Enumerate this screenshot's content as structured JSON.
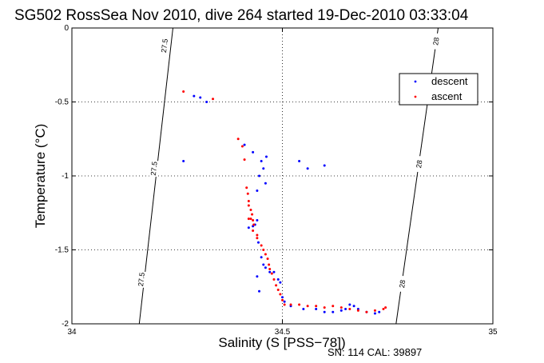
{
  "figure": {
    "title": "SG502 RossSea Nov 2010, dive 264 started 19-Dec-2010 03:33:04",
    "footer": "SN: 114  CAL: 39897"
  },
  "chart_data": {
    "type": "scatter",
    "title": "SG502 RossSea Nov 2010, dive 264 started 19-Dec-2010 03:33:04",
    "xlabel": "Salinity (S [PSS−78])",
    "ylabel": "Temperature (°C)",
    "xlim": [
      34,
      35
    ],
    "ylim": [
      -2,
      0
    ],
    "xticks": [
      34,
      34.5,
      35
    ],
    "yticks": [
      0,
      -0.5,
      -1,
      -1.5,
      -2
    ],
    "xtick_labels": [
      "34",
      "34.5",
      "35"
    ],
    "ytick_labels": [
      "0",
      "-0.5",
      "-1",
      "-1.5",
      "-2"
    ],
    "grid": "dotted",
    "legend_position": "top-right",
    "isopycnals": [
      {
        "label": "27.5",
        "points": [
          [
            34.16,
            -2.0
          ],
          [
            34.24,
            0.0
          ]
        ],
        "label_positions": [
          [
            34.22,
            -0.12
          ],
          [
            34.195,
            -0.95
          ],
          [
            34.165,
            -1.7
          ]
        ]
      },
      {
        "label": "28",
        "points": [
          [
            34.77,
            -2.0
          ],
          [
            34.87,
            0.0
          ]
        ],
        "label_positions": [
          [
            34.865,
            -0.09
          ],
          [
            34.825,
            -0.92
          ],
          [
            34.785,
            -1.73
          ]
        ]
      }
    ],
    "series": [
      {
        "name": "descent",
        "color": "#0000ff",
        "points": [
          [
            34.265,
            -0.9
          ],
          [
            34.29,
            -0.46
          ],
          [
            34.305,
            -0.47
          ],
          [
            34.32,
            -0.5
          ],
          [
            34.41,
            -0.79
          ],
          [
            34.43,
            -0.84
          ],
          [
            34.45,
            -0.9
          ],
          [
            34.462,
            -0.87
          ],
          [
            34.455,
            -0.95
          ],
          [
            34.445,
            -1.0
          ],
          [
            34.46,
            -1.05
          ],
          [
            34.44,
            -1.1
          ],
          [
            34.42,
            -1.35
          ],
          [
            34.43,
            -1.34
          ],
          [
            34.435,
            -1.33
          ],
          [
            34.44,
            -1.3
          ],
          [
            34.443,
            -1.45
          ],
          [
            34.45,
            -1.55
          ],
          [
            34.455,
            -1.6
          ],
          [
            34.46,
            -1.62
          ],
          [
            34.47,
            -1.65
          ],
          [
            34.48,
            -1.65
          ],
          [
            34.49,
            -1.7
          ],
          [
            34.495,
            -1.72
          ],
          [
            34.44,
            -1.68
          ],
          [
            34.445,
            -1.78
          ],
          [
            34.5,
            -1.82
          ],
          [
            34.505,
            -1.85
          ],
          [
            34.52,
            -1.88
          ],
          [
            34.55,
            -1.9
          ],
          [
            34.58,
            -1.9
          ],
          [
            34.6,
            -1.92
          ],
          [
            34.62,
            -1.92
          ],
          [
            34.64,
            -1.91
          ],
          [
            34.65,
            -1.9
          ],
          [
            34.66,
            -1.87
          ],
          [
            34.67,
            -1.88
          ],
          [
            34.68,
            -1.9
          ],
          [
            34.7,
            -1.92
          ],
          [
            34.72,
            -1.93
          ],
          [
            34.73,
            -1.92
          ],
          [
            34.54,
            -0.9
          ],
          [
            34.56,
            -0.95
          ],
          [
            34.6,
            -0.93
          ]
        ]
      },
      {
        "name": "ascent",
        "color": "#ff0000",
        "points": [
          [
            34.265,
            -0.43
          ],
          [
            34.335,
            -0.48
          ],
          [
            34.395,
            -0.75
          ],
          [
            34.405,
            -0.8
          ],
          [
            34.41,
            -0.89
          ],
          [
            34.415,
            -1.08
          ],
          [
            34.418,
            -1.12
          ],
          [
            34.42,
            -1.17
          ],
          [
            34.42,
            -1.2
          ],
          [
            34.425,
            -1.23
          ],
          [
            34.428,
            -1.26
          ],
          [
            34.425,
            -1.29
          ],
          [
            34.43,
            -1.3
          ],
          [
            34.432,
            -1.33
          ],
          [
            34.43,
            -1.37
          ],
          [
            34.44,
            -1.42
          ],
          [
            34.45,
            -1.47
          ],
          [
            34.455,
            -1.5
          ],
          [
            34.46,
            -1.53
          ],
          [
            34.465,
            -1.56
          ],
          [
            34.468,
            -1.6
          ],
          [
            34.47,
            -1.63
          ],
          [
            34.475,
            -1.66
          ],
          [
            34.48,
            -1.7
          ],
          [
            34.485,
            -1.74
          ],
          [
            34.49,
            -1.77
          ],
          [
            34.495,
            -1.8
          ],
          [
            34.5,
            -1.84
          ],
          [
            34.505,
            -1.87
          ],
          [
            34.52,
            -1.87
          ],
          [
            34.54,
            -1.87
          ],
          [
            34.56,
            -1.88
          ],
          [
            34.58,
            -1.88
          ],
          [
            34.6,
            -1.89
          ],
          [
            34.62,
            -1.88
          ],
          [
            34.64,
            -1.89
          ],
          [
            34.66,
            -1.9
          ],
          [
            34.68,
            -1.91
          ],
          [
            34.7,
            -1.92
          ],
          [
            34.72,
            -1.91
          ],
          [
            34.74,
            -1.9
          ],
          [
            34.745,
            -1.89
          ],
          [
            34.42,
            -1.29
          ],
          [
            34.44,
            -1.4
          ]
        ]
      }
    ]
  }
}
